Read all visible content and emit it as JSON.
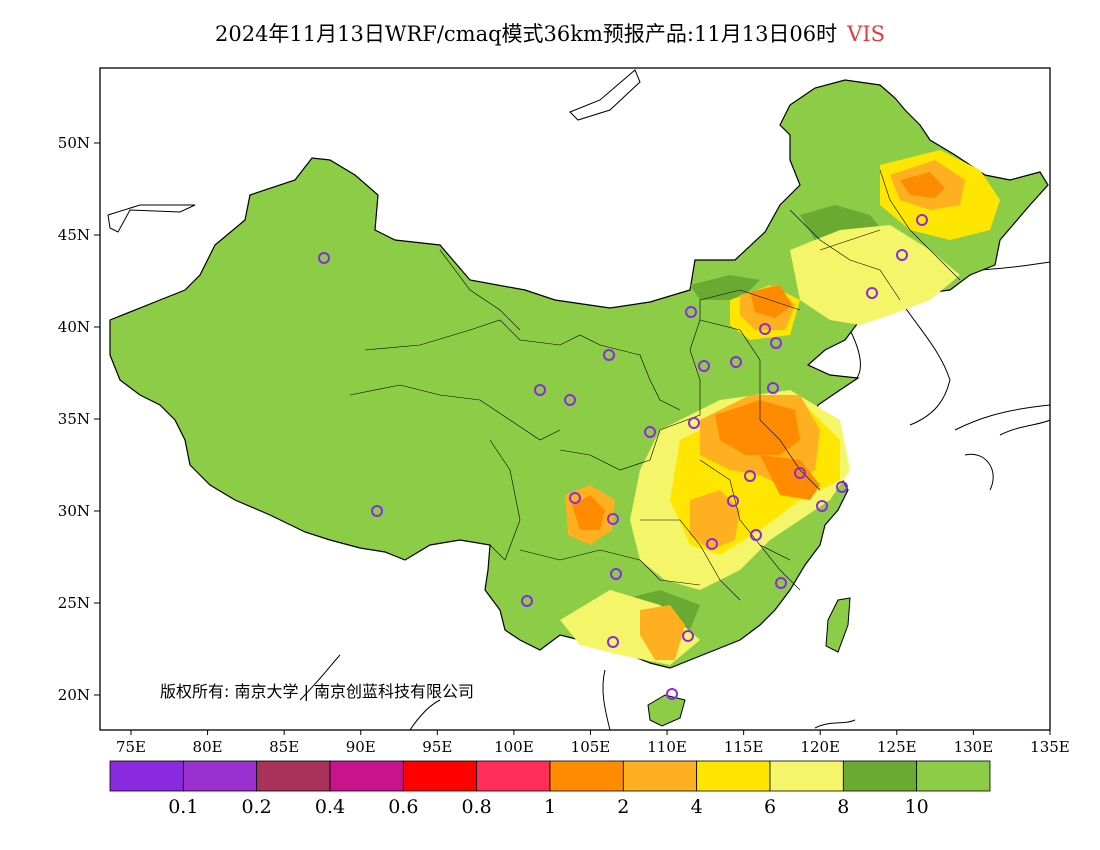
{
  "title": {
    "text": "2024年11月13日WRF/cmaq模式36km预报产品:11月13日06时",
    "variable": "VIS"
  },
  "map": {
    "lat_ticks": [
      "50N",
      "45N",
      "40N",
      "35N",
      "30N",
      "25N",
      "20N"
    ],
    "lon_ticks": [
      "75E",
      "80E",
      "85E",
      "90E",
      "95E",
      "100E",
      "105E",
      "110E",
      "115E",
      "120E",
      "125E",
      "130E",
      "135E"
    ],
    "copyright": "版权所有: 南京大学 | 南京创蓝科技有限公司"
  },
  "colorbar": {
    "colors": [
      "#8a2be2",
      "#9b30d0",
      "#a8325a",
      "#c8148c",
      "#ff0000",
      "#ff2f5a",
      "#ff8c00",
      "#ffb020",
      "#ffe600",
      "#f5f56a",
      "#6aaa32",
      "#8ccc46"
    ],
    "labels": [
      "0.1",
      "0.2",
      "0.4",
      "0.6",
      "0.8",
      "1",
      "2",
      "4",
      "6",
      "8",
      "10"
    ]
  },
  "legend_colors": {
    "base_land": "#8ccc46",
    "dark_green": "#6aaa32",
    "light_yellow": "#f5f56a",
    "yellow": "#ffe600",
    "light_orange": "#ffb020",
    "orange": "#ff8c00",
    "station_marker": "#8a2be2"
  }
}
